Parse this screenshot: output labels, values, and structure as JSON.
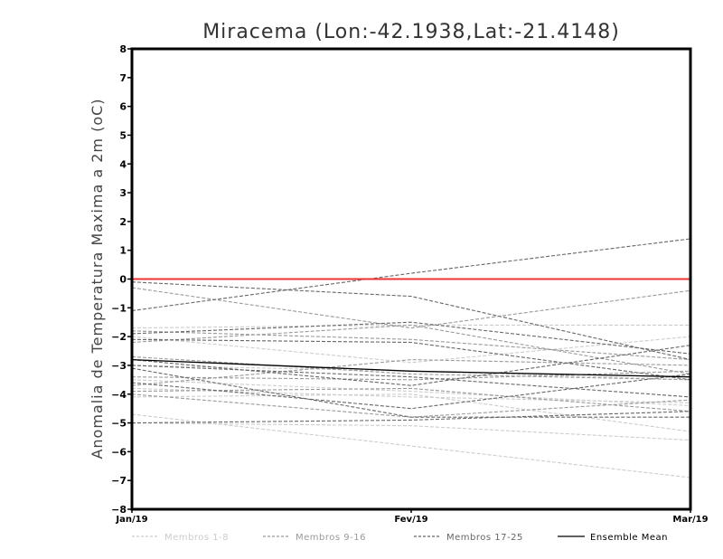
{
  "chart_data": {
    "type": "line",
    "title": "Miracema (Lon:-42.1938,Lat:-21.4148)",
    "ylabel": "Anomalia de Temperatura Maxima a 2m (oC)",
    "xlabel": "",
    "categories": [
      "Jan/19",
      "Fev/19",
      "Mar/19"
    ],
    "ylim": [
      -8,
      8
    ],
    "yticks": [
      "8",
      "7",
      "6",
      "5",
      "4",
      "3",
      "2",
      "1",
      "0",
      "-1",
      "-2",
      "-3",
      "-4",
      "-5",
      "-6",
      "-7",
      "-8"
    ],
    "zero_line_color": "#ee3333",
    "legend": [
      {
        "label": "Membros 1-8",
        "color": "#cccccc",
        "dash": "dashed"
      },
      {
        "label": "Membros 9-16",
        "color": "#999999",
        "dash": "dashed"
      },
      {
        "label": "Membros 17-25",
        "color": "#666666",
        "dash": "dashed"
      },
      {
        "label": "Ensemble Mean",
        "color": "#000000",
        "dash": "solid"
      }
    ],
    "groups": [
      {
        "color": "#cccccc",
        "series": [
          {
            "values": [
              -1.7,
              -1.6,
              -1.6
            ]
          },
          {
            "values": [
              -2.0,
              -2.9,
              -2.0
            ]
          },
          {
            "values": [
              -3.0,
              -3.2,
              -3.5
            ]
          },
          {
            "values": [
              -3.5,
              -3.9,
              -4.4
            ]
          },
          {
            "values": [
              -3.8,
              -4.1,
              -4.3
            ]
          },
          {
            "values": [
              -4.1,
              -4.0,
              -5.3
            ]
          },
          {
            "values": [
              -4.7,
              -5.8,
              -6.9
            ]
          },
          {
            "values": [
              -5.0,
              -5.1,
              -5.6
            ]
          }
        ]
      },
      {
        "color": "#999999",
        "series": [
          {
            "values": [
              -0.3,
              -1.7,
              -0.4
            ]
          },
          {
            "values": [
              -1.8,
              -2.1,
              -2.8
            ]
          },
          {
            "values": [
              -2.2,
              -1.6,
              -3.3
            ]
          },
          {
            "values": [
              -2.7,
              -3.3,
              -3.5
            ]
          },
          {
            "values": [
              -3.4,
              -3.5,
              -3.2
            ]
          },
          {
            "values": [
              -3.7,
              -2.8,
              -3.0
            ]
          },
          {
            "values": [
              -3.9,
              -3.8,
              -4.6
            ]
          },
          {
            "values": [
              -4.0,
              -4.8,
              -4.2
            ]
          }
        ]
      },
      {
        "color": "#666666",
        "series": [
          {
            "values": [
              -1.1,
              0.2,
              1.4
            ]
          },
          {
            "values": [
              -0.1,
              -0.6,
              -2.8
            ]
          },
          {
            "values": [
              -1.9,
              -1.5,
              -2.6
            ]
          },
          {
            "values": [
              -2.1,
              -2.2,
              -3.5
            ]
          },
          {
            "values": [
              -2.8,
              -3.7,
              -2.3
            ]
          },
          {
            "values": [
              -3.0,
              -3.4,
              -4.1
            ]
          },
          {
            "values": [
              -3.1,
              -4.8,
              -4.8
            ]
          },
          {
            "values": [
              -3.6,
              -4.5,
              -3.3
            ]
          },
          {
            "values": [
              -5.0,
              -4.9,
              -4.6
            ]
          }
        ]
      }
    ],
    "mean": {
      "color": "#000000",
      "values": [
        -2.8,
        -3.2,
        -3.4
      ]
    }
  }
}
